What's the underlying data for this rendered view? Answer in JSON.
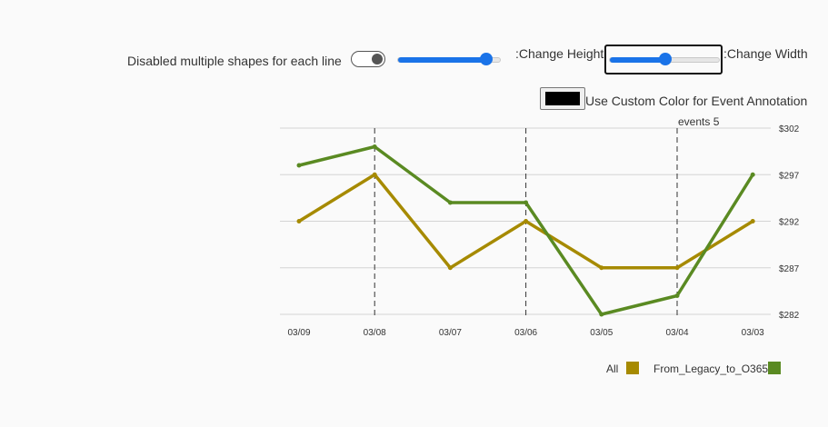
{
  "controls": {
    "toggle_label": "Disabled multiple shapes for each line",
    "height_label": ":Change Height",
    "height_value": 0.85,
    "width_label": ":Change Width",
    "width_value": 0.5,
    "custom_color_label": "Use Custom Color for Event Annotation",
    "custom_color": "#000000"
  },
  "chart_data": {
    "type": "line",
    "x": [
      "03/09",
      "03/08",
      "03/07",
      "03/06",
      "03/05",
      "03/04",
      "03/03"
    ],
    "ylim": [
      282,
      302
    ],
    "yticks": [
      282,
      287,
      292,
      297,
      302
    ],
    "ytick_labels": [
      "$282",
      "$287",
      "$292",
      "$297",
      "$302"
    ],
    "grid": true,
    "legend_position": "bottom-right",
    "series": [
      {
        "name": "All",
        "color": "#a68a00",
        "values": [
          292,
          297,
          287,
          292,
          287,
          287,
          292
        ]
      },
      {
        "name": "From_Legacy_to_O365",
        "color": "#5a8a22",
        "values": [
          298,
          300,
          294,
          294,
          282,
          284,
          297
        ]
      }
    ],
    "annotations": [
      {
        "x": "03/08",
        "label": ""
      },
      {
        "x": "03/06",
        "label": ""
      },
      {
        "x": "03/04",
        "label": "events 5"
      }
    ]
  }
}
